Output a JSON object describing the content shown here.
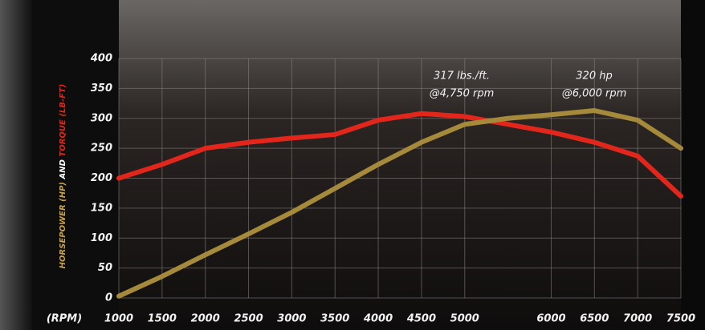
{
  "chart_data": {
    "type": "line",
    "x_label": "(RPM)",
    "y_label": [
      "HORSEPOWER (HP)",
      "AND",
      "TORQUE (LB-FT)"
    ],
    "annotations": [
      [
        "317 lbs./ft.",
        "@4,750 rpm"
      ],
      [
        "320 hp",
        "@6,000 rpm"
      ]
    ],
    "x": [
      1000,
      1500,
      2000,
      2500,
      3000,
      3500,
      4000,
      4500,
      5000,
      5500,
      6000,
      6500,
      7000,
      7500
    ],
    "series": [
      {
        "color": "#e3261b",
        "values": [
          200,
          223,
          250,
          260,
          267,
          273,
          297,
          308,
          303,
          290,
          277,
          260,
          237,
          170
        ]
      },
      {
        "color": "#a58a3c",
        "values": [
          3,
          36,
          72,
          107,
          143,
          183,
          223,
          260,
          290,
          300,
          306,
          313,
          297,
          250
        ]
      }
    ],
    "xlim": [
      1000,
      7500
    ],
    "xticks": [
      1000,
      1500,
      2000,
      2500,
      3000,
      3500,
      4000,
      4500,
      5000,
      6000,
      6500,
      7000,
      7500
    ],
    "ylim": [
      0,
      400
    ],
    "yticks": [
      0,
      50,
      100,
      150,
      200,
      250,
      300,
      350,
      400
    ],
    "grid": true
  }
}
